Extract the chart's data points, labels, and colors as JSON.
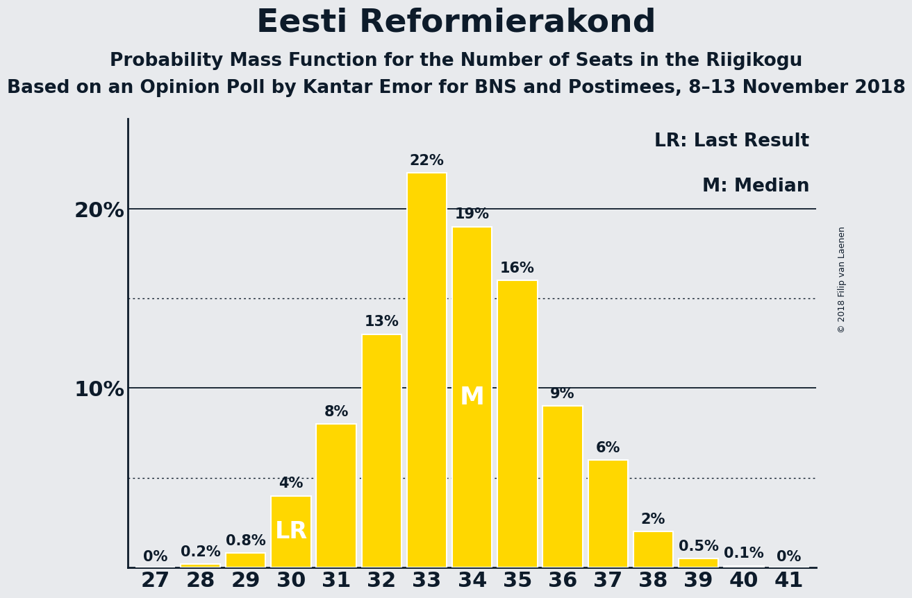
{
  "title": "Eesti Reformierakond",
  "subtitle1": "Probability Mass Function for the Number of Seats in the Riigikogu",
  "subtitle2": "Based on an Opinion Poll by Kantar Emor for BNS and Postimees, 8–13 November 2018",
  "copyright": "© 2018 Filip van Laenen",
  "categories": [
    27,
    28,
    29,
    30,
    31,
    32,
    33,
    34,
    35,
    36,
    37,
    38,
    39,
    40,
    41
  ],
  "values": [
    0.0,
    0.2,
    0.8,
    4.0,
    8.0,
    13.0,
    22.0,
    19.0,
    16.0,
    9.0,
    6.0,
    2.0,
    0.5,
    0.1,
    0.0
  ],
  "bar_labels": [
    "0%",
    "0.2%",
    "0.8%",
    "4%",
    "8%",
    "13%",
    "22%",
    "19%",
    "16%",
    "9%",
    "6%",
    "2%",
    "0.5%",
    "0.1%",
    "0%"
  ],
  "bar_color": "#FFD700",
  "bar_edge_color": "white",
  "background_color": "#e8eaed",
  "text_color": "#0d1b2a",
  "lr_index": 3,
  "median_index": 7,
  "median_label": "M",
  "lr_label": "LR",
  "ylim_max": 25,
  "dotted_lines": [
    5,
    15
  ],
  "solid_lines": [
    10,
    20
  ],
  "title_fontsize": 34,
  "subtitle1_fontsize": 19,
  "subtitle2_fontsize": 19,
  "bar_label_fontsize": 15,
  "axis_tick_fontsize": 22,
  "legend_fontsize": 19,
  "inside_label_fontsize": 24,
  "copyright_fontsize": 9
}
